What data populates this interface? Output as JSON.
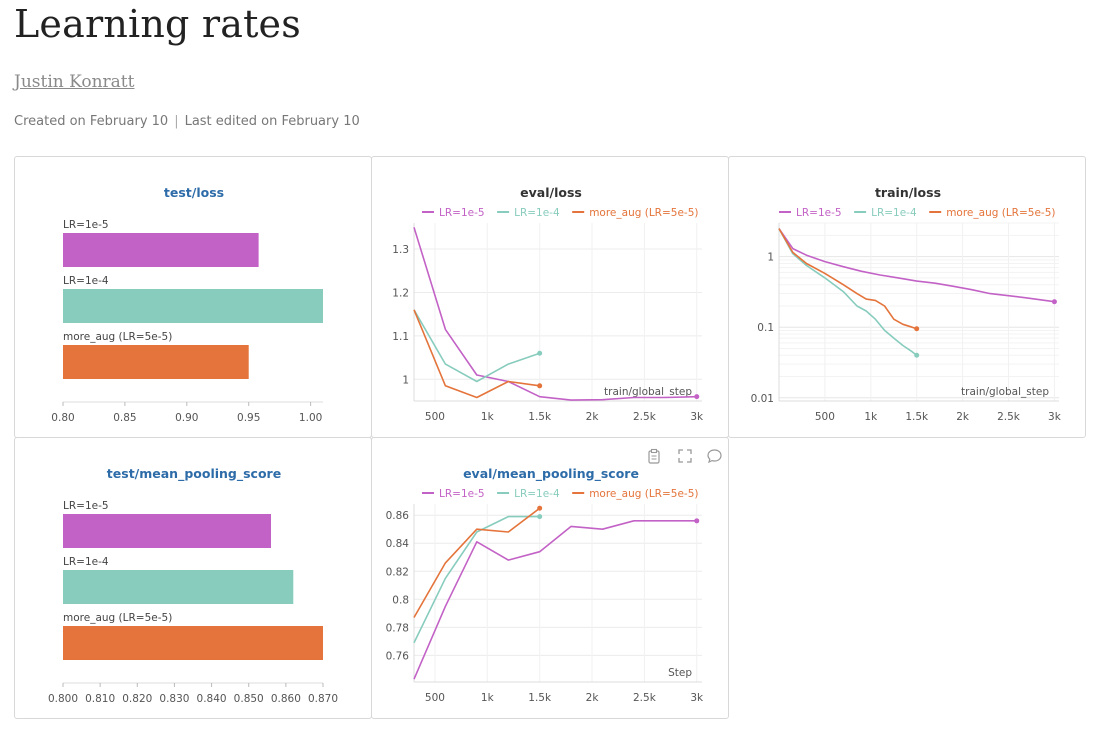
{
  "report": {
    "title": "Learning rates",
    "author": "Justin Konratt",
    "created": "Created on February 10",
    "separator": "|",
    "edited": "Last edited on February 10"
  },
  "colors": {
    "lr1e5": "#c362c6",
    "lr1e4": "#87ccbd",
    "aug": "#e4743b",
    "title_blue": "#2d6ca8",
    "title_dark": "#333333"
  },
  "panel_icons": [
    "clipboard-icon",
    "fullscreen-icon",
    "comment-icon"
  ],
  "chart_data": [
    {
      "id": "test_loss",
      "type": "bar",
      "title": "test/loss",
      "categories": [
        "LR=1e-5",
        "LR=1e-4",
        "more_aug (LR=5e-5)"
      ],
      "values": [
        0.958,
        1.01,
        0.95
      ],
      "colors": [
        "#c362c6",
        "#87ccbd",
        "#e4743b"
      ],
      "xlim": [
        0.8,
        1.01
      ],
      "xticks": [
        0.8,
        0.85,
        0.9,
        0.95,
        1.0
      ],
      "xtick_labels": [
        "0.80",
        "0.85",
        "0.90",
        "0.95",
        "1.00"
      ]
    },
    {
      "id": "eval_loss",
      "type": "line",
      "title": "eval/loss",
      "xlabel": "train/global_step",
      "xlim": [
        300,
        3050
      ],
      "ylim": [
        0.95,
        1.36
      ],
      "xticks": [
        500,
        1000,
        1500,
        2000,
        2500,
        3000
      ],
      "xtick_labels": [
        "500",
        "1k",
        "1.5k",
        "2k",
        "2.5k",
        "3k"
      ],
      "yticks": [
        1.0,
        1.1,
        1.2,
        1.3
      ],
      "ytick_labels": [
        "1",
        "1.1",
        "1.2",
        "1.3"
      ],
      "series": [
        {
          "name": "LR=1e-5",
          "color": "#c362c6",
          "x": [
            300,
            600,
            900,
            1200,
            1500,
            1800,
            2100,
            2400,
            2700,
            3000
          ],
          "y": [
            1.35,
            1.115,
            1.01,
            0.995,
            0.96,
            0.952,
            0.953,
            0.958,
            0.958,
            0.96
          ]
        },
        {
          "name": "LR=1e-4",
          "color": "#87ccbd",
          "x": [
            300,
            600,
            900,
            1200,
            1500
          ],
          "y": [
            1.16,
            1.035,
            0.995,
            1.035,
            1.06
          ]
        },
        {
          "name": "more_aug (LR=5e-5)",
          "color": "#e4743b",
          "x": [
            300,
            600,
            900,
            1200,
            1500
          ],
          "y": [
            1.16,
            0.985,
            0.958,
            0.995,
            0.985
          ]
        }
      ]
    },
    {
      "id": "train_loss",
      "type": "line",
      "title": "train/loss",
      "xlabel": "train/global_step",
      "log_y": true,
      "xlim": [
        0,
        3050
      ],
      "ylim": [
        0.009,
        3
      ],
      "xticks": [
        500,
        1000,
        1500,
        2000,
        2500,
        3000
      ],
      "xtick_labels": [
        "500",
        "1k",
        "1.5k",
        "2k",
        "2.5k",
        "3k"
      ],
      "yticks": [
        0.01,
        0.1,
        1
      ],
      "ytick_labels": [
        "0.01",
        "0.1",
        "1"
      ],
      "series": [
        {
          "name": "LR=1e-5",
          "color": "#c362c6",
          "x": [
            0,
            150,
            300,
            500,
            700,
            900,
            1100,
            1300,
            1500,
            1700,
            1900,
            2100,
            2300,
            2500,
            2700,
            2900,
            3000
          ],
          "y": [
            2.5,
            1.3,
            1.05,
            0.85,
            0.72,
            0.62,
            0.55,
            0.5,
            0.45,
            0.42,
            0.38,
            0.34,
            0.3,
            0.28,
            0.26,
            0.24,
            0.23
          ]
        },
        {
          "name": "LR=1e-4",
          "color": "#87ccbd",
          "x": [
            0,
            150,
            300,
            500,
            700,
            850,
            950,
            1050,
            1150,
            1250,
            1350,
            1450,
            1500
          ],
          "y": [
            2.5,
            1.1,
            0.75,
            0.5,
            0.32,
            0.2,
            0.17,
            0.13,
            0.09,
            0.07,
            0.055,
            0.045,
            0.04
          ]
        },
        {
          "name": "more_aug (LR=5e-5)",
          "color": "#e4743b",
          "x": [
            0,
            150,
            300,
            500,
            700,
            850,
            950,
            1050,
            1150,
            1250,
            1350,
            1450,
            1500
          ],
          "y": [
            2.5,
            1.15,
            0.8,
            0.58,
            0.4,
            0.3,
            0.25,
            0.24,
            0.2,
            0.13,
            0.11,
            0.1,
            0.095
          ]
        }
      ]
    },
    {
      "id": "test_mean_pooling_score",
      "type": "bar",
      "title": "test/mean_pooling_score",
      "categories": [
        "LR=1e-5",
        "LR=1e-4",
        "more_aug (LR=5e-5)"
      ],
      "values": [
        0.856,
        0.862,
        0.87
      ],
      "colors": [
        "#c362c6",
        "#87ccbd",
        "#e4743b"
      ],
      "xlim": [
        0.8,
        0.87
      ],
      "xticks": [
        0.8,
        0.81,
        0.82,
        0.83,
        0.84,
        0.85,
        0.86,
        0.87
      ],
      "xtick_labels": [
        "0.800",
        "0.810",
        "0.820",
        "0.830",
        "0.840",
        "0.850",
        "0.860",
        "0.870"
      ]
    },
    {
      "id": "eval_mean_pooling_score",
      "type": "line",
      "title": "eval/mean_pooling_score",
      "xlabel": "Step",
      "xlim": [
        300,
        3050
      ],
      "ylim": [
        0.741,
        0.868
      ],
      "xticks": [
        500,
        1000,
        1500,
        2000,
        2500,
        3000
      ],
      "xtick_labels": [
        "500",
        "1k",
        "1.5k",
        "2k",
        "2.5k",
        "3k"
      ],
      "yticks": [
        0.76,
        0.78,
        0.8,
        0.82,
        0.84,
        0.86
      ],
      "ytick_labels": [
        "0.76",
        "0.78",
        "0.8",
        "0.82",
        "0.84",
        "0.86"
      ],
      "series": [
        {
          "name": "LR=1e-5",
          "color": "#c362c6",
          "x": [
            300,
            600,
            900,
            1200,
            1500,
            1800,
            2100,
            2400,
            2700,
            3000
          ],
          "y": [
            0.743,
            0.795,
            0.841,
            0.828,
            0.834,
            0.852,
            0.85,
            0.856,
            0.856,
            0.856
          ]
        },
        {
          "name": "LR=1e-4",
          "color": "#87ccbd",
          "x": [
            300,
            600,
            900,
            1200,
            1500
          ],
          "y": [
            0.769,
            0.815,
            0.848,
            0.859,
            0.859
          ]
        },
        {
          "name": "more_aug (LR=5e-5)",
          "color": "#e4743b",
          "x": [
            300,
            600,
            900,
            1200,
            1500
          ],
          "y": [
            0.787,
            0.826,
            0.85,
            0.848,
            0.865
          ]
        }
      ]
    }
  ]
}
